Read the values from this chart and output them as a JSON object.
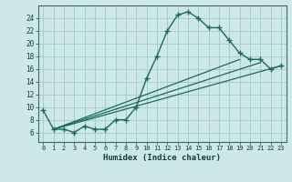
{
  "xlabel": "Humidex (Indice chaleur)",
  "bg_color": "#cce8e8",
  "grid_color": "#aacccc",
  "line_color": "#1a6b5a",
  "xlim": [
    -0.5,
    23.5
  ],
  "ylim": [
    4.5,
    26
  ],
  "xticks": [
    0,
    1,
    2,
    3,
    4,
    5,
    6,
    7,
    8,
    9,
    10,
    11,
    12,
    13,
    14,
    15,
    16,
    17,
    18,
    19,
    20,
    21,
    22,
    23
  ],
  "yticks": [
    6,
    8,
    10,
    12,
    14,
    16,
    18,
    20,
    22,
    24
  ],
  "main_series": {
    "x": [
      0,
      1,
      2,
      3,
      4,
      5,
      6,
      7,
      8,
      9,
      10,
      11,
      12,
      13,
      14,
      15,
      16,
      17,
      18,
      19,
      20,
      21,
      22,
      23
    ],
    "y": [
      9.5,
      6.5,
      6.5,
      6.0,
      7.0,
      6.5,
      6.5,
      8.0,
      8.0,
      10.0,
      14.5,
      18.0,
      22.0,
      24.5,
      25.0,
      24.0,
      22.5,
      22.5,
      20.5,
      18.5,
      17.5,
      17.5,
      16.0,
      16.5
    ]
  },
  "trend_lines": [
    {
      "x": [
        1,
        19
      ],
      "y": [
        6.5,
        17.5
      ]
    },
    {
      "x": [
        1,
        21
      ],
      "y": [
        6.5,
        17.0
      ]
    },
    {
      "x": [
        1,
        23
      ],
      "y": [
        6.5,
        16.5
      ]
    }
  ]
}
